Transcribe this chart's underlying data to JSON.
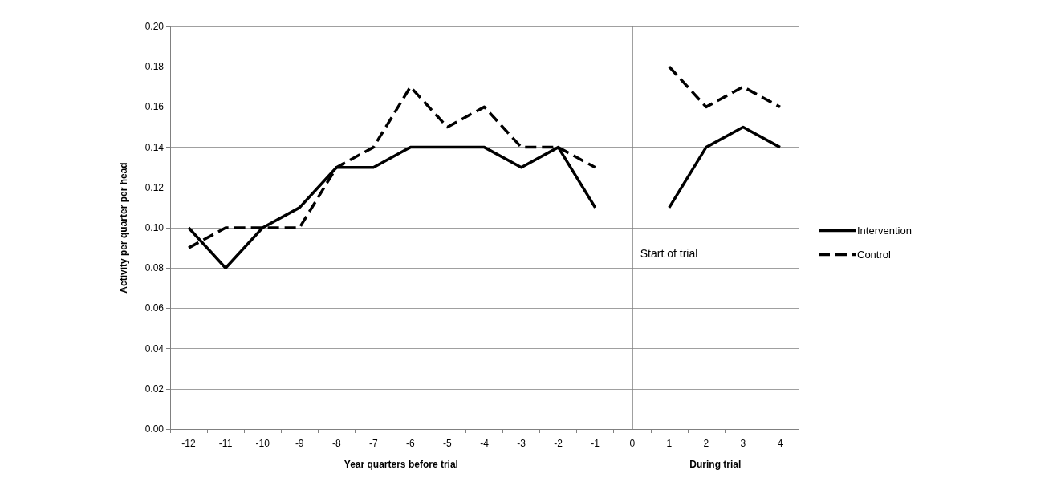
{
  "chart_data": {
    "type": "line",
    "ylabel": "Activity per quarter per head",
    "xlabel": "Year quarters before trial",
    "annotations": [
      "During trial"
    ],
    "categories": [
      "-12",
      "-11",
      "-10",
      "-9",
      "-8",
      "-7",
      "-6",
      "-5",
      "-4",
      "-3",
      "-2",
      "-1",
      "0",
      "1",
      "2",
      "3",
      "4"
    ],
    "series": [
      {
        "name": "Intervention",
        "color": "#000000",
        "line_style": "solid",
        "values": [
          0.1,
          0.08,
          0.1,
          0.11,
          0.13,
          0.13,
          0.14,
          0.14,
          0.14,
          0.13,
          0.14,
          0.11,
          null,
          0.11,
          0.14,
          0.15,
          0.14
        ]
      },
      {
        "name": "Control",
        "color": "#000000",
        "line_style": "dashed",
        "values": [
          0.09,
          0.1,
          0.1,
          0.1,
          0.13,
          0.14,
          0.17,
          0.15,
          0.16,
          0.14,
          0.14,
          0.13,
          null,
          0.18,
          0.16,
          0.17,
          0.16
        ]
      }
    ],
    "ylim": [
      0,
      0.2
    ],
    "yticks": [
      {
        "value": 0,
        "label": "0.00"
      },
      0.02,
      0.04,
      0.06,
      0.08,
      {
        "value": 0.1,
        "label": "0.10"
      },
      0.12,
      0.14,
      0.16,
      0.18,
      {
        "value": 0.2,
        "label": "0.20"
      }
    ],
    "ref_lines": [
      {
        "axis": "x",
        "value": "0",
        "label": "Start of trial",
        "color": "#808080"
      }
    ],
    "grid": "y",
    "legend": "right",
    "marker": "none"
  }
}
